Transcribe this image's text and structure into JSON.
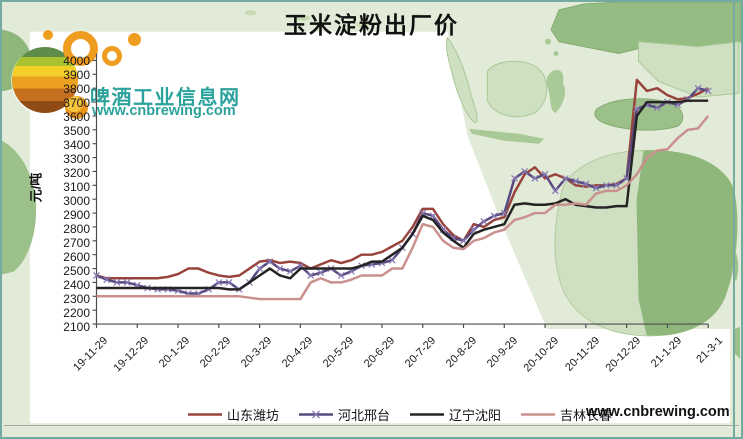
{
  "title": "玉米淀粉出厂价",
  "logo": {
    "site_name": "啤酒工业信息网",
    "site_url": "www.cnbrewing.com"
  },
  "footer": {
    "url": "www.cnbrewing.com"
  },
  "chart_data": {
    "type": "line",
    "title": "玉米淀粉出厂价",
    "xlabel": "",
    "ylabel": "元/吨",
    "ylim": [
      2100,
      4000
    ],
    "y_tick_step": 100,
    "grid": false,
    "legend_position": "bottom",
    "categories": [
      "19-11-29",
      "19-12-29",
      "20-1-29",
      "20-2-29",
      "20-3-29",
      "20-4-29",
      "20-5-29",
      "20-6-29",
      "20-7-29",
      "20-8-29",
      "20-9-29",
      "20-10-29",
      "20-11-29",
      "20-12-29",
      "21-1-29",
      "21-3-1"
    ],
    "series": [
      {
        "name": "山东潍坊",
        "color": "#98433c",
        "marker": "none",
        "values": [
          2450,
          2430,
          2430,
          2430,
          2430,
          2430,
          2430,
          2440,
          2460,
          2500,
          2500,
          2470,
          2450,
          2440,
          2450,
          2500,
          2550,
          2560,
          2540,
          2550,
          2540,
          2500,
          2530,
          2560,
          2540,
          2560,
          2600,
          2600,
          2620,
          2660,
          2700,
          2800,
          2930,
          2930,
          2820,
          2740,
          2700,
          2820,
          2800,
          2850,
          2870,
          3050,
          3180,
          3230,
          3150,
          3180,
          3150,
          3100,
          3090,
          3100,
          3100,
          3110,
          3150,
          3860,
          3780,
          3800,
          3750,
          3720,
          3730,
          3760,
          3800
        ]
      },
      {
        "name": "河北邢台",
        "color": "#584a80",
        "marker": "x",
        "marker_color": "#8b7cb5",
        "values": [
          2450,
          2420,
          2400,
          2400,
          2380,
          2360,
          2350,
          2350,
          2340,
          2320,
          2320,
          2350,
          2400,
          2400,
          2350,
          2400,
          2500,
          2550,
          2500,
          2480,
          2520,
          2450,
          2470,
          2500,
          2450,
          2480,
          2520,
          2530,
          2540,
          2560,
          2650,
          2750,
          2900,
          2880,
          2780,
          2720,
          2700,
          2780,
          2840,
          2880,
          2900,
          3150,
          3200,
          3150,
          3180,
          3060,
          3150,
          3130,
          3110,
          3080,
          3100,
          3100,
          3150,
          3650,
          3680,
          3660,
          3700,
          3680,
          3720,
          3800,
          3780
        ]
      },
      {
        "name": "辽宁沈阳",
        "color": "#262324",
        "marker": "none",
        "values": [
          2360,
          2360,
          2360,
          2360,
          2360,
          2360,
          2360,
          2360,
          2360,
          2360,
          2360,
          2360,
          2360,
          2350,
          2350,
          2400,
          2450,
          2500,
          2450,
          2430,
          2500,
          2500,
          2500,
          2500,
          2500,
          2500,
          2520,
          2550,
          2550,
          2600,
          2650,
          2750,
          2880,
          2850,
          2760,
          2700,
          2650,
          2750,
          2780,
          2800,
          2820,
          2960,
          2970,
          2960,
          2960,
          2970,
          3000,
          2960,
          2950,
          2940,
          2940,
          2950,
          2950,
          3600,
          3700,
          3700,
          3700,
          3700,
          3710,
          3710,
          3710
        ]
      },
      {
        "name": "吉林长春",
        "color": "#c9908e",
        "marker": "none",
        "values": [
          2300,
          2300,
          2300,
          2300,
          2300,
          2300,
          2300,
          2300,
          2300,
          2300,
          2300,
          2300,
          2300,
          2300,
          2300,
          2290,
          2280,
          2280,
          2280,
          2280,
          2280,
          2400,
          2430,
          2400,
          2400,
          2420,
          2450,
          2450,
          2450,
          2500,
          2500,
          2650,
          2820,
          2800,
          2700,
          2650,
          2640,
          2700,
          2720,
          2760,
          2780,
          2850,
          2870,
          2900,
          2900,
          2960,
          2960,
          2970,
          2960,
          3040,
          3060,
          3060,
          3100,
          3180,
          3300,
          3350,
          3360,
          3440,
          3500,
          3510,
          3600
        ]
      }
    ]
  }
}
